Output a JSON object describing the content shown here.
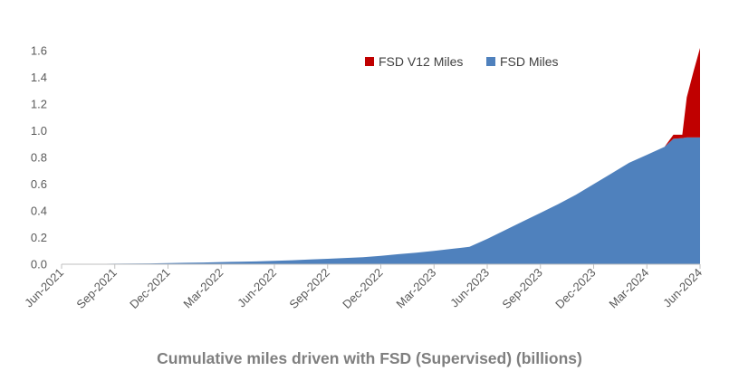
{
  "chart_data": {
    "type": "area",
    "title": "Cumulative miles driven with FSD (Supervised) (billions)",
    "xlabel": "",
    "ylabel": "",
    "stacked": true,
    "categories": [
      "Jun-2021",
      "Sep-2021",
      "Dec-2021",
      "Mar-2022",
      "Jun-2022",
      "Sep-2022",
      "Dec-2022",
      "Mar-2023",
      "Jun-2023",
      "Sep-2023",
      "Dec-2023",
      "Mar-2024",
      "Jun-2024"
    ],
    "y_ticks": [
      "0.0",
      "0.2",
      "0.4",
      "0.6",
      "0.8",
      "1.0",
      "1.2",
      "1.4",
      "1.6"
    ],
    "ylim": [
      0,
      1.6
    ],
    "grid": false,
    "legend_position": "top-right",
    "x": [
      0,
      0.333,
      0.667,
      1,
      1.333,
      1.667,
      2,
      2.333,
      2.667,
      3,
      3.333,
      3.667,
      4,
      4.333,
      4.667,
      5,
      5.333,
      5.667,
      6,
      6.333,
      6.667,
      7,
      7.333,
      7.667,
      8,
      8.333,
      8.667,
      9,
      9.333,
      9.667,
      10,
      10.333,
      10.667,
      11,
      11.333,
      11.667,
      12
    ],
    "series": [
      {
        "name": "FSD Miles",
        "color": "#4f81bd",
        "values": [
          0.003,
          0.003,
          0.003,
          0.004,
          0.005,
          0.006,
          0.008,
          0.011,
          0.013,
          0.016,
          0.019,
          0.021,
          0.025,
          0.03,
          0.035,
          0.041,
          0.047,
          0.053,
          0.063,
          0.075,
          0.087,
          0.1,
          0.115,
          0.13,
          0.19,
          0.255,
          0.32,
          0.385,
          0.45,
          0.52,
          0.6,
          0.68,
          0.76,
          0.82,
          0.88,
          0.945,
          0.95
        ]
      },
      {
        "name": "FSD V12 Miles",
        "color": "#c00000",
        "values": [
          0,
          0,
          0,
          0,
          0,
          0,
          0,
          0,
          0,
          0,
          0,
          0,
          0,
          0,
          0,
          0,
          0,
          0,
          0,
          0,
          0,
          0,
          0,
          0,
          0,
          0,
          0,
          0,
          0,
          0,
          0,
          0,
          0,
          0,
          0,
          0.025,
          0.67
        ]
      }
    ],
    "extra_v12_points": [
      {
        "x": 11.5,
        "fsd": 0.94,
        "v12": 0.03
      },
      {
        "x": 11.75,
        "fsd": 0.95,
        "v12": 0.3
      },
      {
        "x": 11.88,
        "fsd": 0.95,
        "v12": 0.5
      }
    ],
    "legend": [
      {
        "label": "FSD V12 Miles",
        "color": "#c00000"
      },
      {
        "label": "FSD Miles",
        "color": "#4f81bd"
      }
    ]
  }
}
